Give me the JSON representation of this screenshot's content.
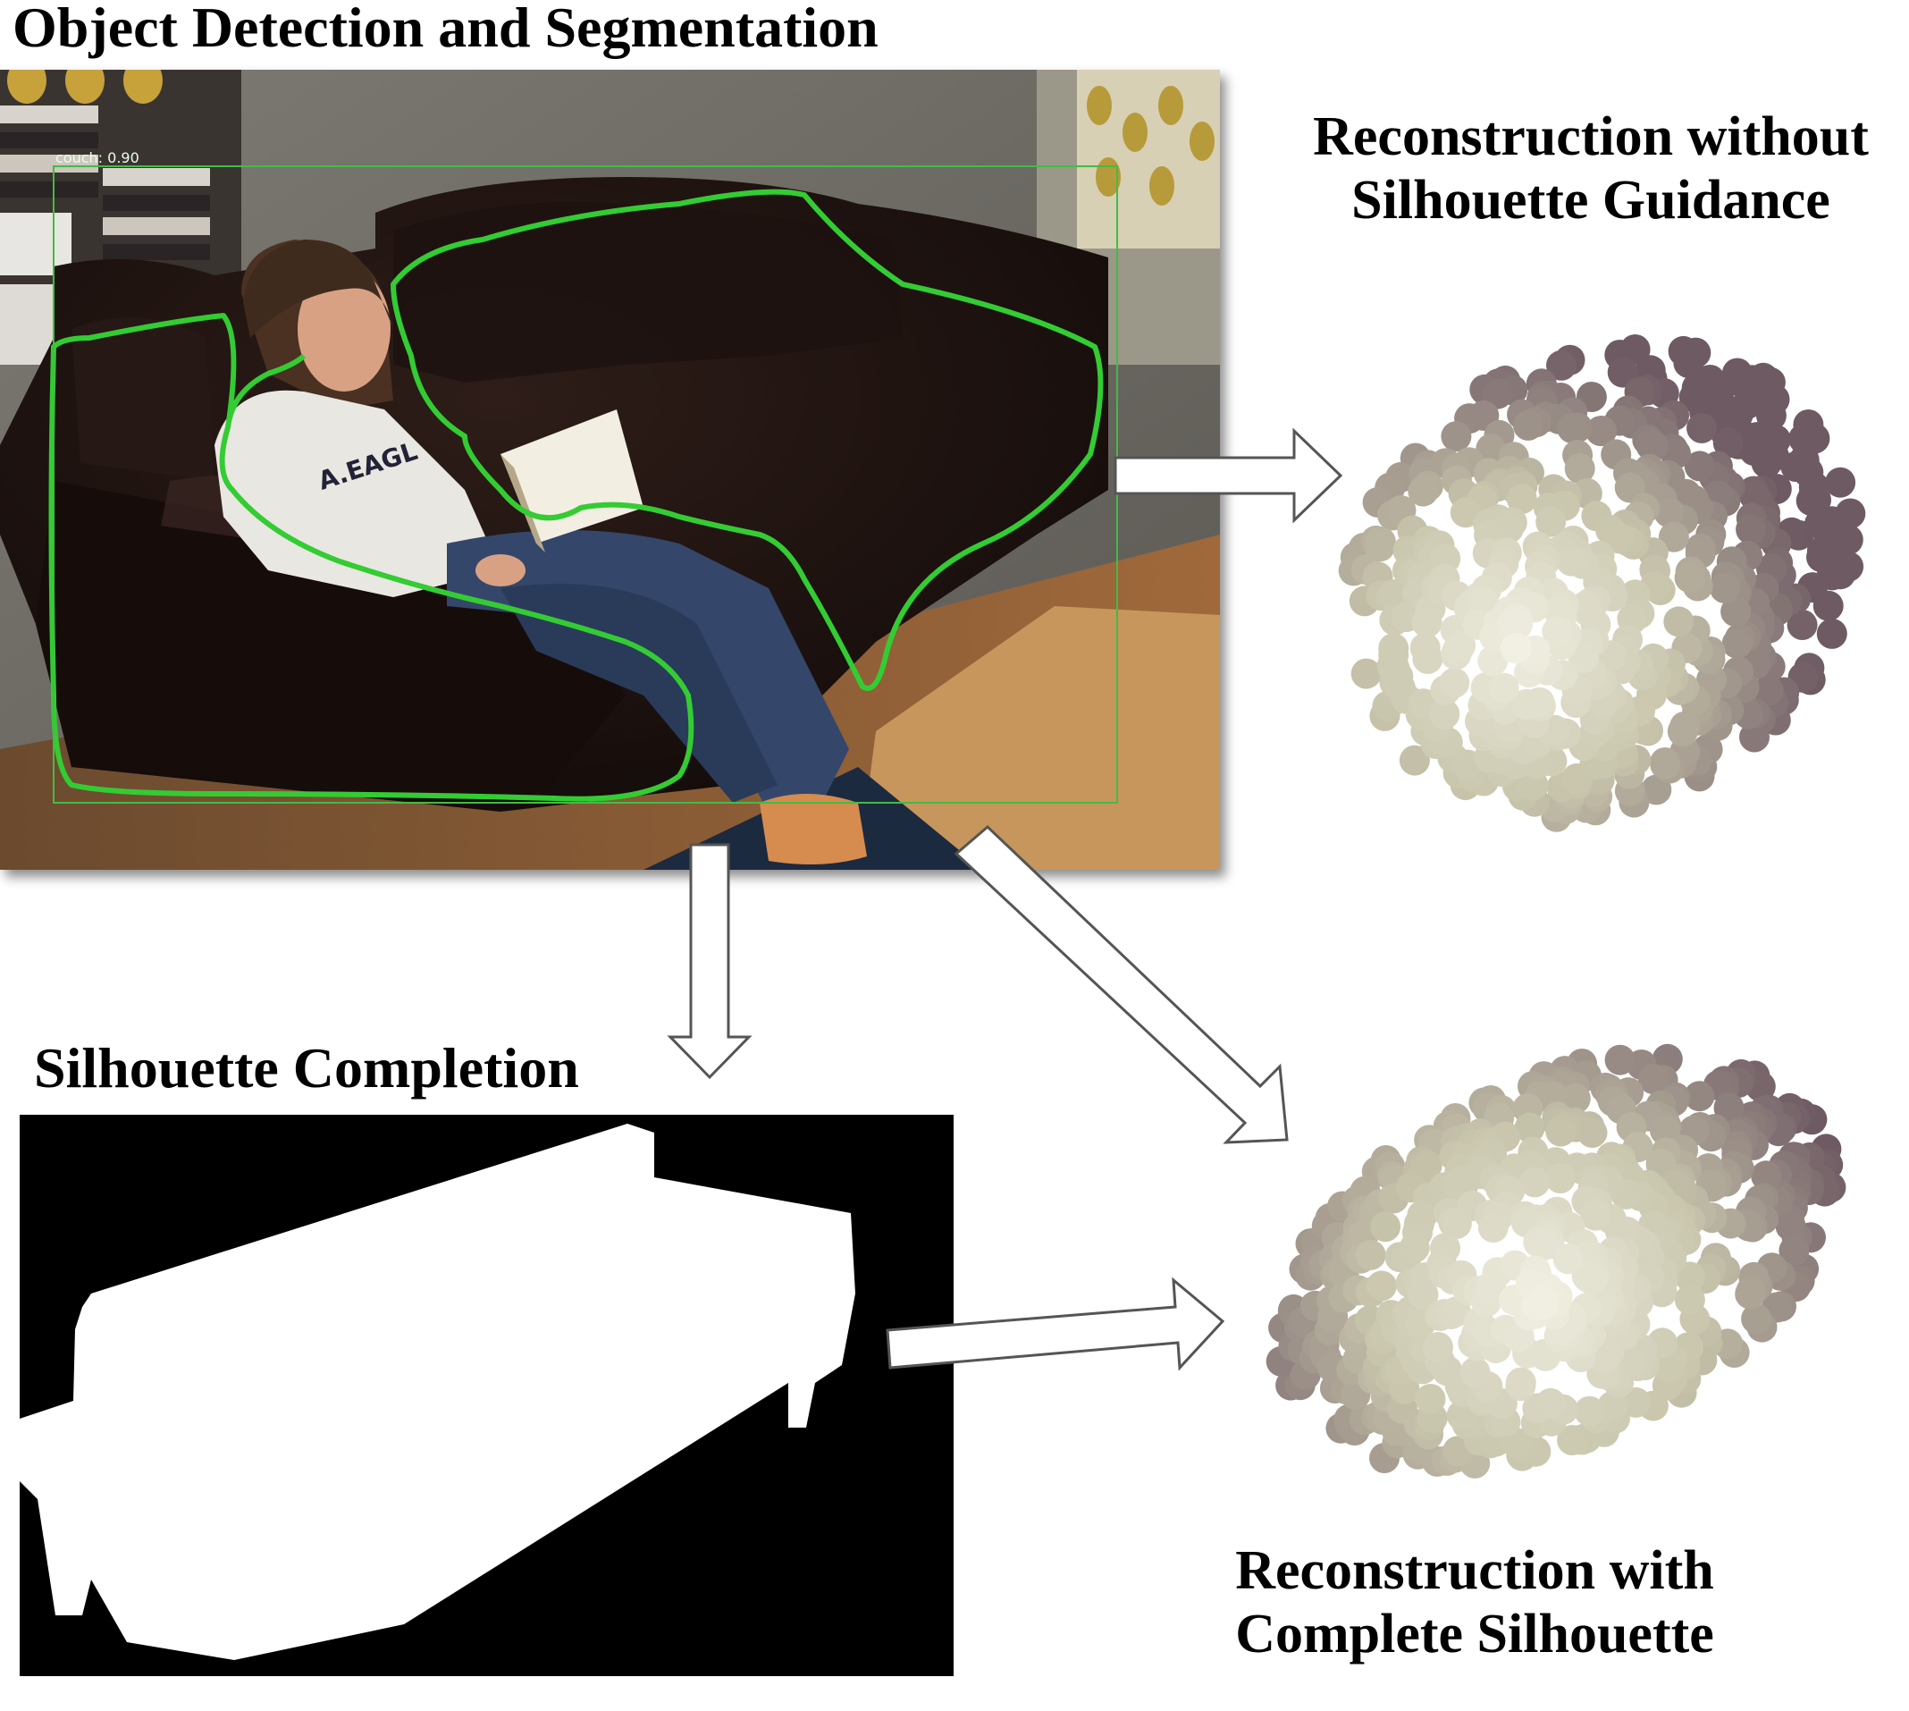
{
  "titles": {
    "detection": "Object Detection and Segmentation",
    "without_line1": "Reconstruction without",
    "without_line2": "Silhouette Guidance",
    "silhouette": "Silhouette Completion",
    "with_line1": "Reconstruction with",
    "with_line2": "Complete Silhouette"
  },
  "detection": {
    "label": "couch: 0.90",
    "mask_color": "#33cc33",
    "box_color": "#44bb44"
  },
  "colors": {
    "point_light": "#f2f1e4",
    "point_mid": "#c9c6ad",
    "point_dark": "#6e5a63",
    "arrow_fill": "#ffffff",
    "arrow_stroke": "#555555"
  }
}
